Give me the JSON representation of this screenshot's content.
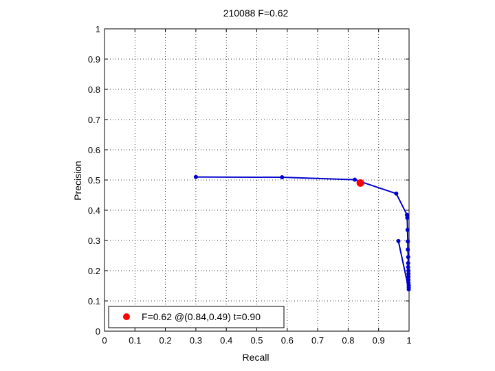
{
  "chart_data": {
    "type": "line",
    "title": "210088 F=0.62",
    "xlabel": "Recall",
    "ylabel": "Precision",
    "xlim": [
      0,
      1
    ],
    "ylim": [
      0,
      1
    ],
    "xticks": [
      "0",
      "0.1",
      "0.2",
      "0.3",
      "0.4",
      "0.5",
      "0.6",
      "0.7",
      "0.8",
      "0.9",
      "1"
    ],
    "yticks": [
      "0",
      "0.1",
      "0.2",
      "0.3",
      "0.4",
      "0.5",
      "0.6",
      "0.7",
      "0.8",
      "0.9",
      "1"
    ],
    "grid": true,
    "legend_position": "bottom-left",
    "series": [
      {
        "color": "#0000cc",
        "marker": "dot",
        "points": [
          {
            "x": 0.3,
            "y": 0.51
          },
          {
            "x": 0.583,
            "y": 0.509
          },
          {
            "x": 0.822,
            "y": 0.501
          },
          {
            "x": 0.958,
            "y": 0.455
          },
          {
            "x": 0.993,
            "y": 0.385
          },
          {
            "x": 0.994,
            "y": 0.375
          },
          {
            "x": 0.995,
            "y": 0.335
          },
          {
            "x": 0.996,
            "y": 0.297
          },
          {
            "x": 0.996,
            "y": 0.27
          },
          {
            "x": 0.997,
            "y": 0.245
          },
          {
            "x": 0.997,
            "y": 0.225
          },
          {
            "x": 0.997,
            "y": 0.212
          },
          {
            "x": 0.998,
            "y": 0.2
          },
          {
            "x": 0.998,
            "y": 0.19
          },
          {
            "x": 0.998,
            "y": 0.18
          },
          {
            "x": 0.998,
            "y": 0.17
          },
          {
            "x": 0.998,
            "y": 0.16
          },
          {
            "x": 0.999,
            "y": 0.152
          },
          {
            "x": 0.999,
            "y": 0.145
          },
          {
            "x": 0.999,
            "y": 0.138
          },
          {
            "x": 0.965,
            "y": 0.298
          }
        ]
      }
    ],
    "best_point": {
      "x": 0.84,
      "y": 0.49,
      "color": "#ff0000"
    },
    "legend": {
      "label": "F=0.62 @(0.84,0.49) t=0.90",
      "marker_color": "#ff0000"
    }
  }
}
